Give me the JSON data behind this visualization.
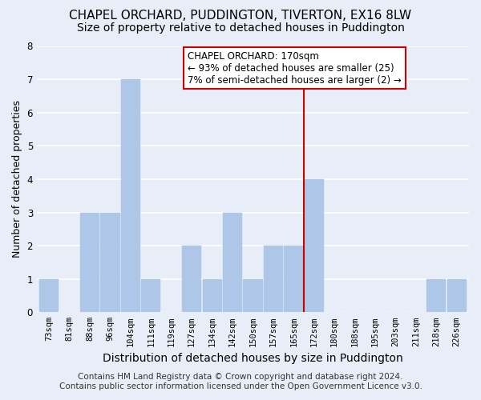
{
  "title": "CHAPEL ORCHARD, PUDDINGTON, TIVERTON, EX16 8LW",
  "subtitle": "Size of property relative to detached houses in Puddington",
  "xlabel": "Distribution of detached houses by size in Puddington",
  "ylabel": "Number of detached properties",
  "footer_line1": "Contains HM Land Registry data © Crown copyright and database right 2024.",
  "footer_line2": "Contains public sector information licensed under the Open Government Licence v3.0.",
  "bin_labels": [
    "73sqm",
    "81sqm",
    "88sqm",
    "96sqm",
    "104sqm",
    "111sqm",
    "119sqm",
    "127sqm",
    "134sqm",
    "142sqm",
    "150sqm",
    "157sqm",
    "165sqm",
    "172sqm",
    "180sqm",
    "188sqm",
    "195sqm",
    "203sqm",
    "211sqm",
    "218sqm",
    "226sqm"
  ],
  "bar_values": [
    1,
    0,
    3,
    3,
    7,
    1,
    0,
    2,
    1,
    3,
    1,
    2,
    2,
    4,
    0,
    0,
    0,
    0,
    0,
    1,
    1
  ],
  "bar_color": "#aec6e8",
  "bar_edge_color": "#aec6e8",
  "vline_x": 12.5,
  "vline_color": "#cc0000",
  "annotation_text": "CHAPEL ORCHARD: 170sqm\n← 93% of detached houses are smaller (25)\n7% of semi-detached houses are larger (2) →",
  "annotation_box_color": "#ffffff",
  "annotation_box_edge": "#cc0000",
  "ylim": [
    0,
    8
  ],
  "yticks": [
    0,
    1,
    2,
    3,
    4,
    5,
    6,
    7,
    8
  ],
  "bg_color": "#e8eef7",
  "plot_bg_color": "#e8eef7",
  "grid_color": "#ffffff",
  "title_fontsize": 11,
  "subtitle_fontsize": 10,
  "xlabel_fontsize": 10,
  "ylabel_fontsize": 9,
  "tick_fontsize": 7.5,
  "footer_fontsize": 7.5,
  "annot_fontsize": 8.5
}
